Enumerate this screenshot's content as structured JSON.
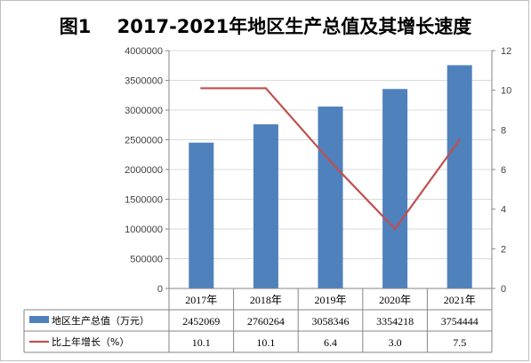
{
  "title": "图1    2017-2021年地区生产总值及其增长速度",
  "chart_data": {
    "type": "bar",
    "title": "图1    2017-2021年地区生产总值及其增长速度",
    "categories": [
      "2017年",
      "2018年",
      "2019年",
      "2020年",
      "2021年"
    ],
    "series": [
      {
        "name": "地区生产总值（万元）",
        "type": "bar",
        "axis": "left",
        "color": "#4f81bd",
        "values": [
          2452069,
          2760264,
          3058346,
          3354218,
          3754444
        ],
        "labels": [
          "2452069",
          "2760264",
          "3058346",
          "3354218",
          "3754444"
        ]
      },
      {
        "name": "比上年增长（%）",
        "type": "line",
        "axis": "right",
        "color": "#c0504d",
        "values": [
          10.1,
          10.1,
          6.4,
          3.0,
          7.5
        ],
        "labels": [
          "10.1",
          "10.1",
          "6.4",
          "3.0",
          "7.5"
        ]
      }
    ],
    "ylim_left": [
      0,
      4000000
    ],
    "yticks_left": [
      "0",
      "500000",
      "1000000",
      "1500000",
      "2000000",
      "2500000",
      "3000000",
      "3500000",
      "4000000"
    ],
    "ylim_right": [
      0,
      12
    ],
    "yticks_right": [
      "0",
      "2",
      "4",
      "6",
      "8",
      "10",
      "12"
    ],
    "grid": true,
    "legend": "data table below chart"
  }
}
